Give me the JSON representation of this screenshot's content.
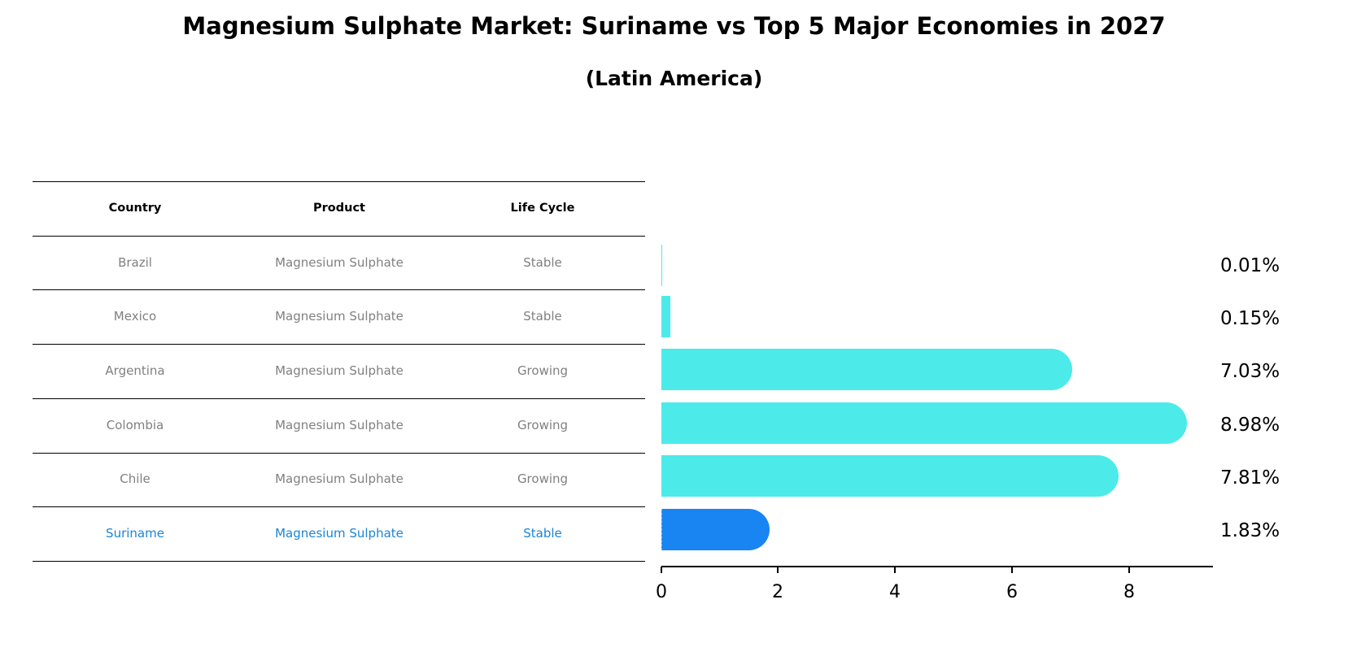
{
  "title": "Magnesium Sulphate Market: Suriname vs Top 5 Major Economies in 2027",
  "subtitle": "(Latin America)",
  "table": {
    "headers": [
      "Country",
      "Product",
      "Life Cycle"
    ],
    "rows": [
      {
        "country": "Brazil",
        "product": "Magnesium Sulphate",
        "life_cycle": "Stable"
      },
      {
        "country": "Mexico",
        "product": "Magnesium Sulphate",
        "life_cycle": "Stable"
      },
      {
        "country": "Argentina",
        "product": "Magnesium Sulphate",
        "life_cycle": "Growing"
      },
      {
        "country": "Colombia",
        "product": "Magnesium Sulphate",
        "life_cycle": "Growing"
      },
      {
        "country": "Chile",
        "product": "Magnesium Sulphate",
        "life_cycle": "Growing"
      },
      {
        "country": "Suriname",
        "product": "Magnesium Sulphate",
        "life_cycle": "Stable"
      }
    ]
  },
  "colors": {
    "bar": "#4deaea",
    "highlight_bar": "#1985f2",
    "highlight_text": "#1a85d6",
    "row_text": "#808080"
  },
  "chart_data": {
    "type": "bar",
    "orientation": "horizontal",
    "title": "Magnesium Sulphate Market: Suriname vs Top 5 Major Economies in 2027",
    "subtitle": "(Latin America)",
    "categories": [
      "Brazil",
      "Mexico",
      "Argentina",
      "Colombia",
      "Chile",
      "Suriname"
    ],
    "values": [
      0.01,
      0.15,
      7.03,
      8.98,
      7.81,
      1.83
    ],
    "value_labels": [
      "0.01%",
      "0.15%",
      "7.03%",
      "8.98%",
      "7.81%",
      "1.83%"
    ],
    "highlight": "Suriname",
    "xlabel": "",
    "ylabel": "",
    "xlim": [
      0,
      9.43
    ],
    "xticks": [
      "0",
      "2",
      "4",
      "6",
      "8"
    ],
    "grid": false,
    "legend": null
  }
}
